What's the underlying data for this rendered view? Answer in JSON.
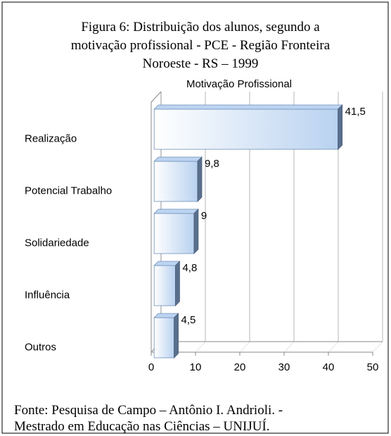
{
  "chart_data": {
    "type": "bar3d",
    "title": [
      "Figura 6: Distribuição dos alunos,  segundo  a",
      "motivação profissional - PCE - Região Fronteira",
      "Noroeste - RS – 1999"
    ],
    "subtitle": "Motivação  Profissional",
    "categories": [
      "Realização",
      "Potencial  Trabalho",
      "Solidariedade",
      "Influência",
      "Outros"
    ],
    "values": [
      41.5,
      9.8,
      9,
      4.8,
      4.5
    ],
    "value_labels": [
      "41,5",
      "9,8",
      "9",
      "4,8",
      "4,5"
    ],
    "color": "#bcd4f2",
    "xlim": [
      0,
      50
    ],
    "xticks": [
      0,
      10,
      20,
      30,
      40,
      50
    ],
    "grid": true,
    "source": [
      "Fonte: Pesquisa de Campo – Antônio I. Andrioli. -",
      "Mestrado em Educação nas Ciências – UNIJUÍ."
    ]
  }
}
